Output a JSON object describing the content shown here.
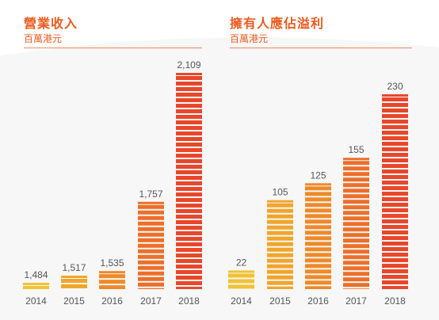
{
  "chart_data": [
    {
      "type": "bar",
      "title": "營業收入",
      "subtitle": "百萬港元",
      "categories": [
        "2014",
        "2015",
        "2016",
        "2017",
        "2018"
      ],
      "values": [
        1484,
        1517,
        1535,
        1757,
        2109
      ],
      "value_labels": [
        "1,484",
        "1,517",
        "1,535",
        "1,757",
        "2,109"
      ],
      "axis_break": true,
      "colors": [
        "#f1c232",
        "#f0a62b",
        "#ee8a28",
        "#ec6f2a",
        "#e8472b"
      ]
    },
    {
      "type": "bar",
      "title": "擁有人應佔溢利",
      "subtitle": "百萬港元",
      "categories": [
        "2014",
        "2015",
        "2016",
        "2017",
        "2018"
      ],
      "values": [
        22,
        105,
        125,
        155,
        230
      ],
      "value_labels": [
        "22",
        "105",
        "125",
        "155",
        "230"
      ],
      "ylim": [
        0,
        230
      ],
      "colors": [
        "#f1c232",
        "#f0a62b",
        "#ee8a28",
        "#ec6f2a",
        "#e8472b"
      ]
    }
  ]
}
